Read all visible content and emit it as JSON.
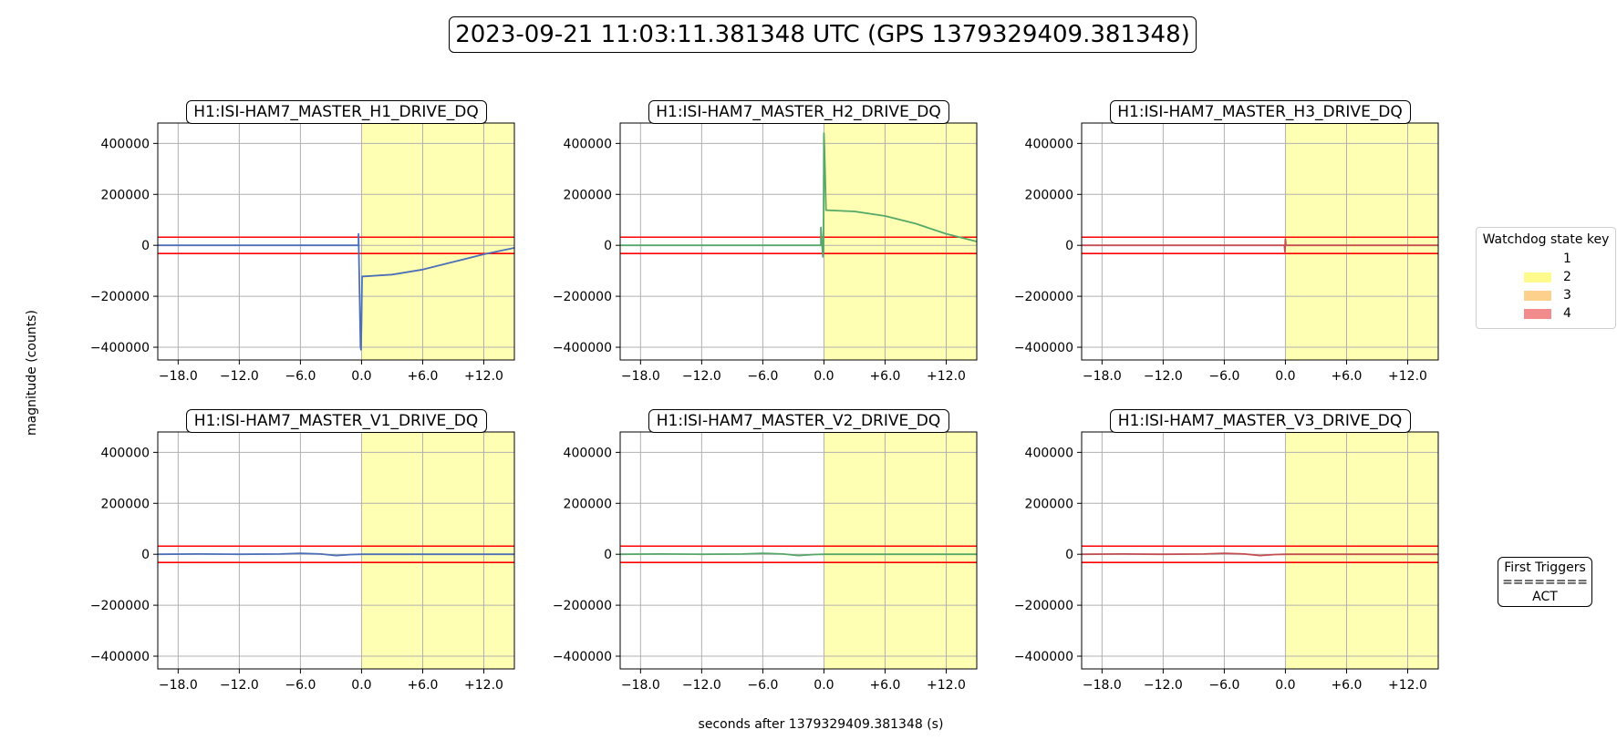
{
  "title": "2023-09-21 11:03:11.381348 UTC (GPS 1379329409.381348)",
  "ylabel": "magnitude (counts)",
  "xlabel": "seconds after 1379329409.381348 (s)",
  "legend": {
    "title": "Watchdog state key",
    "items": [
      {
        "label": "1",
        "color": "#ffffff"
      },
      {
        "label": "2",
        "color": "#fffa8c"
      },
      {
        "label": "3",
        "color": "#fdd08c"
      },
      {
        "label": "4",
        "color": "#f28b8b"
      }
    ]
  },
  "triggers": {
    "heading": "First Triggers",
    "rule": "========",
    "value": "ACT"
  },
  "colors": {
    "state2": "#ffffb3",
    "threshold": "#ff0000",
    "grid": "#b0b0b0",
    "blue": "#4c6fb8",
    "green": "#55a868",
    "red": "#c44e52"
  },
  "chart_data": [
    {
      "type": "line",
      "title": "H1:ISI-HAM7_MASTER_H1_DRIVE_DQ",
      "color": "blue",
      "xlim": [
        -20,
        15
      ],
      "ylim": [
        -450000,
        480000
      ],
      "xticks": [
        -18,
        -12,
        -6,
        0,
        6,
        12
      ],
      "xticklabels": [
        "−18.0",
        "−12.0",
        "−6.0",
        "0.0",
        "+6.0",
        "+12.0"
      ],
      "yticks": [
        400000,
        200000,
        0,
        -200000,
        -400000
      ],
      "yticklabels": [
        "400000",
        "200000",
        "0",
        "−200000",
        "−400000"
      ],
      "thresholds": [
        32000,
        -32000
      ],
      "state2_span": [
        0,
        15
      ],
      "x": [
        -20,
        -10,
        -1,
        -0.3,
        -0.3,
        -0.1,
        -0.05,
        0,
        0.05,
        0.2,
        3,
        6,
        9,
        12,
        15
      ],
      "y": [
        0,
        0,
        0,
        0,
        45000,
        -400000,
        -410000,
        -300000,
        -122000,
        -122000,
        -115000,
        -95000,
        -65000,
        -35000,
        -10000
      ]
    },
    {
      "type": "line",
      "title": "H1:ISI-HAM7_MASTER_H2_DRIVE_DQ",
      "color": "green",
      "xlim": [
        -20,
        15
      ],
      "ylim": [
        -450000,
        480000
      ],
      "xticks": [
        -18,
        -12,
        -6,
        0,
        6,
        12
      ],
      "xticklabels": [
        "−18.0",
        "−12.0",
        "−6.0",
        "0.0",
        "+6.0",
        "+12.0"
      ],
      "yticks": [
        400000,
        200000,
        0,
        -200000,
        -400000
      ],
      "yticklabels": [
        "400000",
        "200000",
        "0",
        "−200000",
        "−400000"
      ],
      "thresholds": [
        32000,
        -32000
      ],
      "state2_span": [
        0,
        15
      ],
      "x": [
        -20,
        -10,
        -1,
        -0.3,
        -0.3,
        -0.1,
        -0.05,
        0,
        0.05,
        0.2,
        3,
        6,
        9,
        12,
        15
      ],
      "y": [
        0,
        0,
        0,
        0,
        70000,
        -45000,
        -20000,
        440000,
        380000,
        138000,
        133000,
        115000,
        85000,
        45000,
        15000
      ]
    },
    {
      "type": "line",
      "title": "H1:ISI-HAM7_MASTER_H3_DRIVE_DQ",
      "color": "red",
      "xlim": [
        -20,
        15
      ],
      "ylim": [
        -450000,
        480000
      ],
      "xticks": [
        -18,
        -12,
        -6,
        0,
        6,
        12
      ],
      "xticklabels": [
        "−18.0",
        "−12.0",
        "−6.0",
        "0.0",
        "+6.0",
        "+12.0"
      ],
      "yticks": [
        400000,
        200000,
        0,
        -200000,
        -400000
      ],
      "yticklabels": [
        "400000",
        "200000",
        "0",
        "−200000",
        "−400000"
      ],
      "thresholds": [
        32000,
        -32000
      ],
      "state2_span": [
        0,
        15
      ],
      "x": [
        -20,
        -10,
        -1,
        -0.1,
        -0.05,
        0,
        0.05,
        0.2,
        3,
        6,
        9,
        12,
        15
      ],
      "y": [
        0,
        0,
        0,
        0,
        -25000,
        25000,
        0,
        0,
        0,
        0,
        0,
        0,
        0
      ]
    },
    {
      "type": "line",
      "title": "H1:ISI-HAM7_MASTER_V1_DRIVE_DQ",
      "color": "blue",
      "xlim": [
        -20,
        15
      ],
      "ylim": [
        -450000,
        480000
      ],
      "xticks": [
        -18,
        -12,
        -6,
        0,
        6,
        12
      ],
      "xticklabels": [
        "−18.0",
        "−12.0",
        "−6.0",
        "0.0",
        "+6.0",
        "+12.0"
      ],
      "yticks": [
        400000,
        200000,
        0,
        -200000,
        -400000
      ],
      "yticklabels": [
        "400000",
        "200000",
        "0",
        "−200000",
        "−400000"
      ],
      "thresholds": [
        32000,
        -32000
      ],
      "state2_span": [
        0,
        15
      ],
      "x": [
        -20,
        -16,
        -12,
        -8,
        -6,
        -4,
        -2.5,
        -1,
        0,
        3,
        6,
        9,
        12,
        15
      ],
      "y": [
        0,
        1000,
        0,
        1000,
        4000,
        1000,
        -5000,
        -1000,
        0,
        0,
        0,
        0,
        0,
        0
      ]
    },
    {
      "type": "line",
      "title": "H1:ISI-HAM7_MASTER_V2_DRIVE_DQ",
      "color": "green",
      "xlim": [
        -20,
        15
      ],
      "ylim": [
        -450000,
        480000
      ],
      "xticks": [
        -18,
        -12,
        -6,
        0,
        6,
        12
      ],
      "xticklabels": [
        "−18.0",
        "−12.0",
        "−6.0",
        "0.0",
        "+6.0",
        "+12.0"
      ],
      "yticks": [
        400000,
        200000,
        0,
        -200000,
        -400000
      ],
      "yticklabels": [
        "400000",
        "200000",
        "0",
        "−200000",
        "−400000"
      ],
      "thresholds": [
        32000,
        -32000
      ],
      "state2_span": [
        0,
        15
      ],
      "x": [
        -20,
        -16,
        -12,
        -8,
        -6,
        -4,
        -2.5,
        -1,
        0,
        3,
        6,
        9,
        12,
        15
      ],
      "y": [
        0,
        1000,
        0,
        1000,
        4000,
        1000,
        -5000,
        -1000,
        0,
        0,
        0,
        0,
        0,
        0
      ]
    },
    {
      "type": "line",
      "title": "H1:ISI-HAM7_MASTER_V3_DRIVE_DQ",
      "color": "red",
      "xlim": [
        -20,
        15
      ],
      "ylim": [
        -450000,
        480000
      ],
      "xticks": [
        -18,
        -12,
        -6,
        0,
        6,
        12
      ],
      "xticklabels": [
        "−18.0",
        "−12.0",
        "−6.0",
        "0.0",
        "+6.0",
        "+12.0"
      ],
      "yticks": [
        400000,
        200000,
        0,
        -200000,
        -400000
      ],
      "yticklabels": [
        "400000",
        "200000",
        "0",
        "−200000",
        "−400000"
      ],
      "thresholds": [
        32000,
        -32000
      ],
      "state2_span": [
        0,
        15
      ],
      "x": [
        -20,
        -16,
        -12,
        -8,
        -6,
        -4,
        -2.5,
        -1,
        0,
        3,
        6,
        9,
        12,
        15
      ],
      "y": [
        0,
        1000,
        0,
        1000,
        4000,
        1000,
        -5000,
        -1000,
        0,
        0,
        0,
        0,
        0,
        0
      ]
    }
  ]
}
